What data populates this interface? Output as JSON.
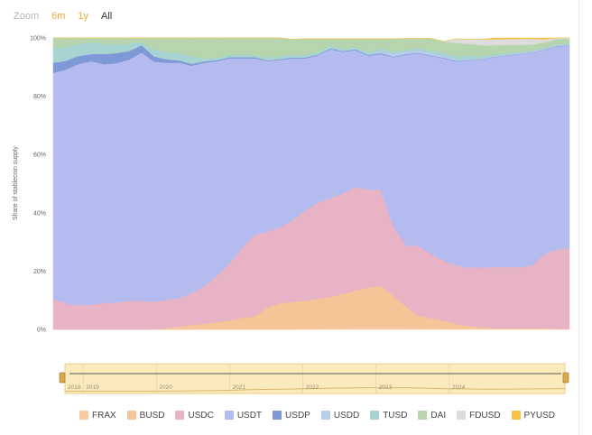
{
  "zoom": {
    "label": "Zoom",
    "buttons": [
      {
        "label": "6m",
        "state": "accent"
      },
      {
        "label": "1y",
        "state": "accent"
      },
      {
        "label": "All",
        "state": "active"
      }
    ]
  },
  "colors": {
    "FRAX": "#f8c9a1",
    "BUSD": "#f5c497",
    "USDC": "#e8b3c4",
    "USDT": "#b3bbef",
    "USDP": "#7f98d6",
    "USDD": "#b8cde8",
    "TUSD": "#a7d3d3",
    "DAI": "#b6d4ae",
    "FDUSD": "#dcdcdc",
    "PYUSD": "#f5c242"
  },
  "chart_data": {
    "type": "area",
    "stacked": "percent",
    "ylabel": "Share of stablecoin supply",
    "yticks": [
      "0%",
      "20%",
      "40%",
      "60%",
      "80%",
      "100%"
    ],
    "ylim": [
      0,
      100
    ],
    "grid": false,
    "legend_position": "bottom",
    "x": [
      2018.0,
      2018.17,
      2018.33,
      2018.5,
      2018.67,
      2018.83,
      2019.0,
      2019.17,
      2019.33,
      2019.5,
      2019.67,
      2019.83,
      2020.0,
      2020.17,
      2020.33,
      2020.5,
      2020.67,
      2020.83,
      2021.0,
      2021.17,
      2021.33,
      2021.5,
      2021.67,
      2021.83,
      2022.0,
      2022.17,
      2022.33,
      2022.5,
      2022.67,
      2022.83,
      2023.0,
      2023.17,
      2023.33,
      2023.5,
      2023.67,
      2023.83,
      2024.0,
      2024.17,
      2024.33,
      2024.5,
      2024.67,
      2024.83
    ],
    "series": [
      {
        "name": "FRAX",
        "values": [
          0,
          0,
          0,
          0,
          0,
          0,
          0,
          0,
          0,
          0,
          0,
          0,
          0,
          0,
          0,
          0,
          0,
          0,
          0,
          0,
          0.3,
          0.5,
          0.6,
          0.7,
          0.8,
          0.9,
          1.0,
          0.9,
          0.8,
          0.7,
          0.6,
          0.5,
          0.4,
          0.3,
          0.3,
          0.2,
          0.2,
          0.2,
          0.2,
          0.2,
          0.1,
          0.1
        ]
      },
      {
        "name": "BUSD",
        "values": [
          0,
          0,
          0,
          0,
          0,
          0,
          0,
          0,
          0,
          0.5,
          1.0,
          1.5,
          2.0,
          2.5,
          3.0,
          4.0,
          4.5,
          7.5,
          9.0,
          9.5,
          9.5,
          10.0,
          10.5,
          11.5,
          12.5,
          13.5,
          14.0,
          10.5,
          7.0,
          4.0,
          3.2,
          2.5,
          1.5,
          0.8,
          0.4,
          0.2,
          0.2,
          0.2,
          0.2,
          0.2,
          0.1,
          0.1
        ]
      },
      {
        "name": "USDC",
        "values": [
          10.3,
          9.0,
          8.3,
          8.5,
          9.0,
          9.3,
          9.8,
          9.8,
          9.5,
          9.6,
          9.8,
          11.0,
          13.0,
          16.0,
          19.5,
          24.0,
          28.0,
          26.0,
          26.0,
          28.0,
          31.0,
          33.0,
          34.0,
          34.5,
          35.5,
          33.5,
          33.0,
          24.0,
          21.0,
          24.0,
          22.0,
          20.5,
          20.0,
          20.2,
          20.5,
          21.0,
          21.0,
          21.0,
          21.5,
          25.5,
          27.3,
          27.8
        ]
      },
      {
        "name": "USDT",
        "values": [
          77.7,
          80.2,
          82.7,
          83.5,
          82.0,
          82.0,
          82.7,
          85.2,
          82.4,
          81.4,
          80.7,
          78.0,
          76.5,
          73.5,
          70.5,
          65.0,
          60.5,
          58.5,
          57.5,
          55.5,
          52.2,
          50.5,
          51.0,
          48.5,
          47.0,
          46.0,
          46.5,
          58.0,
          65.5,
          66.0,
          68.0,
          69.5,
          70.0,
          71.0,
          71.5,
          72.0,
          72.5,
          73.0,
          73.0,
          70.0,
          69.6,
          69.3
        ]
      },
      {
        "name": "USDP",
        "values": [
          3.5,
          3.0,
          2.8,
          2.5,
          3.5,
          3.5,
          3.0,
          2.5,
          1.8,
          1.2,
          0.8,
          0.6,
          0.5,
          0.4,
          0.4,
          0.4,
          0.4,
          0.3,
          0.3,
          0.3,
          0.3,
          0.3,
          0.3,
          0.3,
          0.3,
          0.3,
          0.3,
          0.2,
          0.2,
          0.2,
          0.2,
          0.2,
          0.2,
          0.1,
          0.1,
          0.1,
          0.1,
          0.1,
          0.1,
          0.1,
          0.1,
          0.1
        ]
      },
      {
        "name": "USDD",
        "values": [
          0,
          0,
          0,
          0,
          0,
          0,
          0,
          0,
          0,
          0,
          0,
          0,
          0,
          0,
          0,
          0,
          0,
          0,
          0,
          0,
          0,
          0,
          0,
          0,
          0,
          0,
          0.8,
          1.0,
          1.0,
          1.0,
          0.8,
          0.7,
          0.5,
          0.4,
          0.3,
          0.3,
          0.3,
          0.3,
          0.3,
          0.3,
          0.3,
          0.3
        ]
      },
      {
        "name": "TUSD",
        "values": [
          5.0,
          4.5,
          4.2,
          4.0,
          3.5,
          3.0,
          2.5,
          1.0,
          2.3,
          2.5,
          2.5,
          2.5,
          1.0,
          0.8,
          0.8,
          0.8,
          0.8,
          1.0,
          0.9,
          0.9,
          0.9,
          0.9,
          0.8,
          0.8,
          0.8,
          0.8,
          0.8,
          0.6,
          0.5,
          0.6,
          0.8,
          0.9,
          1.1,
          1.2,
          0.6,
          0.5,
          0.5,
          0.4,
          0.4,
          0.4,
          0.3,
          0.3
        ]
      },
      {
        "name": "DAI",
        "values": [
          3.5,
          3.3,
          2.0,
          1.5,
          2.0,
          2.2,
          2.0,
          1.5,
          4.0,
          4.8,
          5.2,
          6.4,
          7.0,
          6.8,
          5.8,
          5.8,
          5.8,
          6.7,
          6.3,
          5.3,
          5.5,
          4.5,
          2.5,
          3.4,
          2.8,
          4.7,
          3.3,
          4.5,
          3.8,
          3.3,
          4.2,
          4.0,
          4.5,
          4.0,
          3.8,
          3.2,
          2.8,
          2.5,
          2.0,
          1.8,
          1.8,
          1.6
        ]
      },
      {
        "name": "FDUSD",
        "values": [
          0,
          0,
          0,
          0,
          0,
          0,
          0,
          0,
          0,
          0,
          0,
          0,
          0,
          0,
          0,
          0,
          0,
          0,
          0,
          0,
          0,
          0,
          0,
          0,
          0,
          0,
          0,
          0,
          0,
          0,
          0,
          0,
          1.5,
          1.5,
          2.0,
          2.0,
          2.0,
          2.0,
          2.0,
          1.0,
          0.4,
          0.4
        ]
      },
      {
        "name": "PYUSD",
        "values": [
          0,
          0,
          0,
          0,
          0,
          0,
          0,
          0,
          0,
          0,
          0,
          0,
          0,
          0,
          0,
          0,
          0,
          0,
          0,
          0,
          0,
          0,
          0,
          0,
          0,
          0,
          0,
          0,
          0,
          0,
          0,
          0,
          0,
          0,
          0,
          0.5,
          0.6,
          0.6,
          0.6,
          0.5,
          0.5,
          0.5
        ]
      }
    ],
    "navigator": {
      "labels": [
        "2018",
        "2019",
        "2020",
        "2021",
        "2022",
        "2023",
        "2024"
      ],
      "label_x": [
        2018.0,
        2018.25,
        2019.25,
        2020.25,
        2021.25,
        2022.25,
        2023.25
      ],
      "range": [
        2018.0,
        2024.83
      ],
      "line": [
        1.3,
        1.3,
        1.3,
        1.4,
        1.6,
        2.2,
        2.5,
        3.0,
        3.2,
        3.1,
        2.6,
        2.4,
        2.5,
        2.7
      ]
    }
  }
}
